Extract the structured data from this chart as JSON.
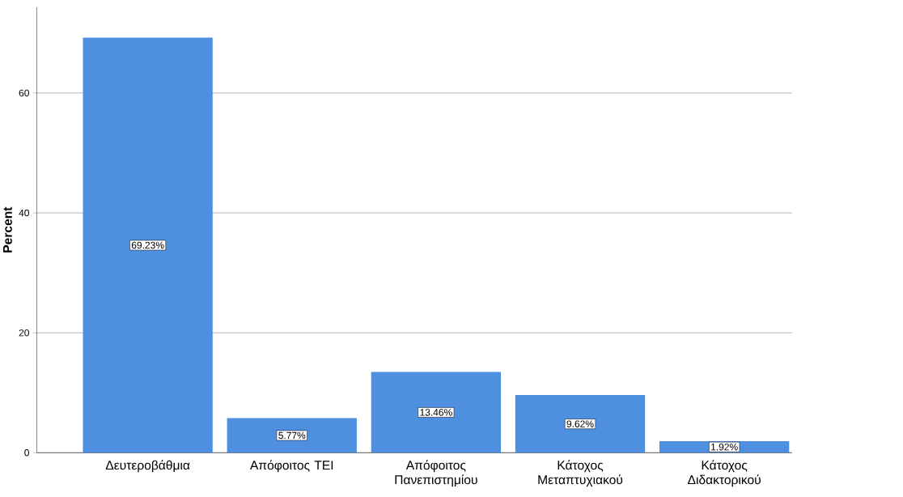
{
  "chart_data": {
    "type": "bar",
    "ylabel": "Percent",
    "categories": [
      "Δευτεροβάθμια",
      "Απόφοιτος ΤΕΙ",
      "Απόφοιτος Πανεπιστημίου",
      "Κάτοχος Μεταπτυχιακού",
      "Κάτοχος Διδακτορικού"
    ],
    "values": [
      69.23,
      5.77,
      13.46,
      9.62,
      1.92
    ],
    "value_labels": [
      "69.23%",
      "5.77%",
      "13.46%",
      "9.62%",
      "1.92%"
    ],
    "color": "#4f8fe0",
    "ylim": [
      0,
      74.3
    ],
    "yticks": [
      0,
      20,
      40,
      60
    ],
    "grid": "y"
  }
}
